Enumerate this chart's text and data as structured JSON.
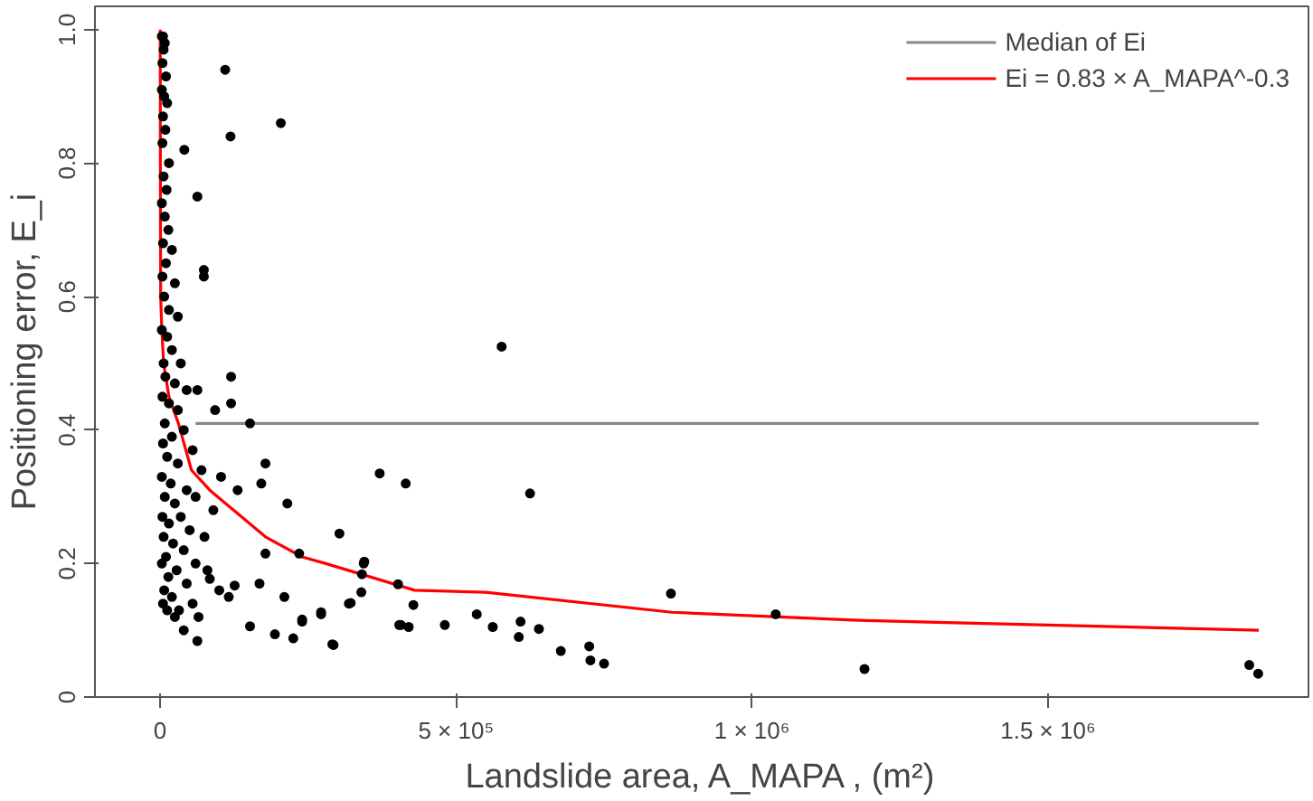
{
  "chart_data": {
    "type": "scatter",
    "xlabel": "Landslide area, A_MAPA , (m²)",
    "ylabel": "Positioning error, E_i",
    "xlim": [
      -110000,
      1940000
    ],
    "ylim": [
      0,
      1.035
    ],
    "xticks": [
      0,
      {
        "value": 500000,
        "label": "5 × 10⁵"
      },
      {
        "value": 1000000,
        "label": "1 × 10⁶"
      },
      {
        "value": 1500000,
        "label": "1.5 × 10⁶"
      }
    ],
    "yticks": [
      0,
      0.2,
      0.4,
      0.6,
      0.8,
      {
        "value": 1,
        "label": "1.0"
      }
    ],
    "grid": false,
    "legend": "top right",
    "series": [
      {
        "type": "line",
        "marker": "none",
        "name": "Median of Ei",
        "color": "#888888",
        "x": [
          60000,
          1856000
        ],
        "values": [
          0.41,
          0.41
        ]
      },
      {
        "type": "line",
        "marker": "none",
        "name": "Ei = 0.83 × A_MAPA^-0.3",
        "color": "#ff0000",
        "x": [
          300,
          500,
          1000,
          3000,
          6000,
          15000,
          31000,
          53000,
          84000,
          178000,
          240000,
          280000,
          430000,
          550000,
          865000,
          1180000,
          1856000
        ],
        "values": [
          1.0,
          0.8,
          0.6,
          0.55,
          0.5,
          0.45,
          0.41,
          0.34,
          0.31,
          0.24,
          0.21,
          0.2,
          0.16,
          0.157,
          0.127,
          0.115,
          0.1
        ]
      },
      {
        "marker": "circle",
        "color": "#000000",
        "x": [
          110000,
          204000,
          119000,
          41000,
          63000,
          74000,
          74000,
          120000,
          120000,
          93000,
          152000,
          63000,
          178000,
          171000,
          215000,
          103000,
          131000,
          303000,
          235000,
          344000,
          371000,
          415000,
          178000,
          168000,
          210000,
          152000,
          194000,
          225000,
          240000,
          272000,
          293000,
          319000,
          340000,
          402000,
          407000,
          63000,
          116000,
          126000,
          84000,
          577000,
          625000,
          345000,
          341000,
          428000,
          322000,
          272000,
          240000,
          291000,
          404000,
          420000,
          481000,
          535000,
          562000,
          609000,
          606000,
          640000,
          677000,
          725000,
          727000,
          750000,
          863000,
          1040000,
          1190000,
          1840000,
          1855000,
          3000,
          5000,
          8000,
          6000,
          4000,
          10000,
          3000,
          7000,
          12000,
          5000,
          9000,
          4000,
          15000,
          6000,
          11000,
          3000,
          8000,
          14000,
          5000,
          20000,
          10000,
          4000,
          25000,
          7000,
          15000,
          30000,
          3000,
          12000,
          20000,
          6000,
          35000,
          9000,
          25000,
          45000,
          4000,
          15000,
          30000,
          8000,
          40000,
          20000,
          5000,
          55000,
          12000,
          30000,
          70000,
          3000,
          18000,
          45000,
          8000,
          60000,
          25000,
          90000,
          4000,
          35000,
          15000,
          50000,
          6000,
          75000,
          22000,
          40000,
          10000,
          60000,
          3000,
          28000,
          80000,
          14000,
          45000,
          7000,
          100000,
          20000,
          55000,
          5000,
          32000,
          12000,
          65000,
          25000,
          40000
        ],
        "values": [
          0.94,
          0.86,
          0.84,
          0.82,
          0.75,
          0.64,
          0.63,
          0.48,
          0.44,
          0.43,
          0.41,
          0.46,
          0.35,
          0.32,
          0.29,
          0.33,
          0.31,
          0.245,
          0.215,
          0.2,
          0.335,
          0.32,
          0.215,
          0.17,
          0.15,
          0.106,
          0.094,
          0.088,
          0.116,
          0.127,
          0.078,
          0.14,
          0.157,
          0.169,
          0.108,
          0.084,
          0.15,
          0.167,
          0.177,
          0.525,
          0.305,
          0.203,
          0.184,
          0.138,
          0.141,
          0.124,
          0.113,
          0.079,
          0.108,
          0.105,
          0.108,
          0.124,
          0.105,
          0.113,
          0.09,
          0.102,
          0.069,
          0.076,
          0.055,
          0.05,
          0.155,
          0.124,
          0.042,
          0.048,
          0.035,
          0.99,
          0.99,
          0.98,
          0.97,
          0.95,
          0.93,
          0.91,
          0.9,
          0.89,
          0.87,
          0.85,
          0.83,
          0.8,
          0.78,
          0.76,
          0.74,
          0.72,
          0.7,
          0.68,
          0.67,
          0.65,
          0.63,
          0.62,
          0.6,
          0.58,
          0.57,
          0.55,
          0.54,
          0.52,
          0.5,
          0.5,
          0.48,
          0.47,
          0.46,
          0.45,
          0.44,
          0.43,
          0.41,
          0.4,
          0.39,
          0.38,
          0.37,
          0.36,
          0.35,
          0.34,
          0.33,
          0.32,
          0.31,
          0.3,
          0.3,
          0.29,
          0.28,
          0.27,
          0.27,
          0.26,
          0.25,
          0.24,
          0.24,
          0.23,
          0.22,
          0.21,
          0.2,
          0.2,
          0.19,
          0.19,
          0.18,
          0.17,
          0.16,
          0.16,
          0.15,
          0.14,
          0.14,
          0.13,
          0.13,
          0.12,
          0.12,
          0.1
        ]
      }
    ]
  }
}
